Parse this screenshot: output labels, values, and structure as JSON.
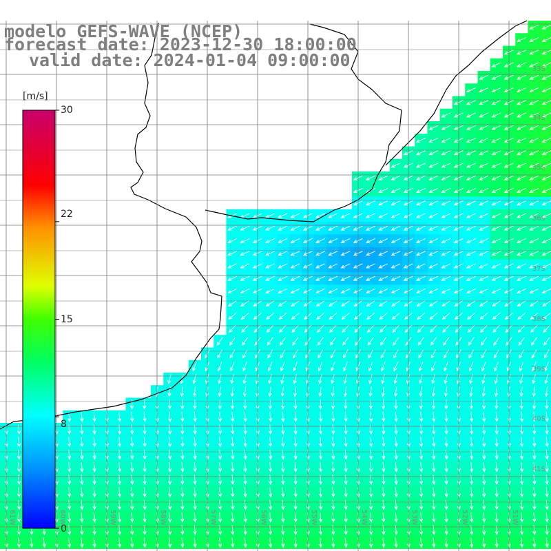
{
  "titles": {
    "line1": "modelo GEFS-WAVE (NCEP)",
    "line2": "forecast date: 2023-12-30 18:00:00",
    "line3": "valid date: 2024-01-04 09:00:00"
  },
  "colorbar": {
    "unit_label": "[m/s]",
    "ticks": [
      "30",
      "22",
      "15",
      "8",
      "0"
    ],
    "range": [
      0,
      30
    ],
    "colors": [
      "#0000ff",
      "#00a0ff",
      "#00ffff",
      "#00ff00",
      "#ffff00",
      "#ff8000",
      "#ff0000",
      "#cc0066"
    ]
  },
  "map": {
    "latitude_labels": [
      "33S",
      "34S",
      "35S",
      "36S",
      "37S",
      "38S",
      "39S",
      "40S",
      "41S"
    ],
    "longitude_labels": [
      "61W",
      "60W",
      "59W",
      "58W",
      "57W",
      "56W",
      "55W",
      "54W",
      "53W",
      "52W",
      "51W"
    ],
    "field": "wind speed",
    "land_color": "#ffffff",
    "grid_color": "#777777"
  }
}
